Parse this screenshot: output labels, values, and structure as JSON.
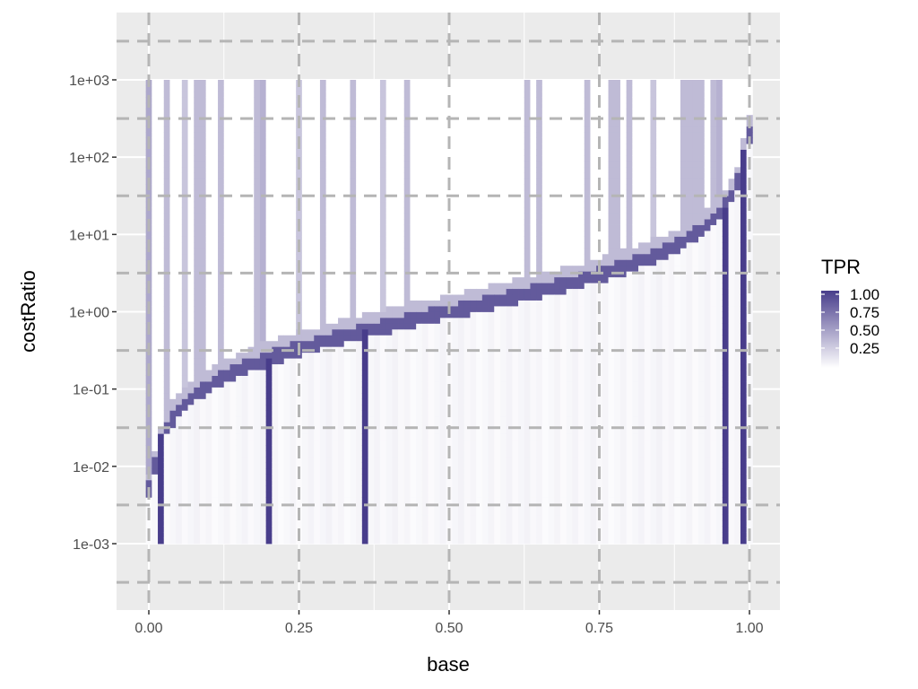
{
  "chart_data": {
    "type": "heatmap",
    "title": "",
    "xlabel": "base",
    "ylabel": "costRatio",
    "x_tick_labels": [
      "0.00",
      "0.25",
      "0.50",
      "0.75",
      "1.00"
    ],
    "x_ticks": [
      0,
      0.25,
      0.5,
      0.75,
      1
    ],
    "y_tick_labels": [
      "1e-03",
      "1e-02",
      "1e-01",
      "1e+00",
      "1e+01",
      "1e+02",
      "1e+03"
    ],
    "y_ticks_log10": [
      -3,
      -2,
      -1,
      0,
      1,
      2,
      3
    ],
    "x_range": [
      -0.05,
      1.05
    ],
    "y_range_log10": [
      -3.85,
      3.85
    ],
    "y_scale": "log10",
    "fill_variable": "TPR",
    "colors": {
      "low": "#ffffff",
      "high": "#483d8b",
      "panel": "#ebebeb",
      "dashed": "#b5b5b5"
    },
    "legend": {
      "title": "TPR",
      "labels": [
        "1.00",
        "0.75",
        "0.50",
        "0.25"
      ],
      "values": [
        1.0,
        0.75,
        0.5,
        0.25
      ],
      "placement": "right"
    },
    "threshold_curve": "costRatio = base / (1 - base)",
    "vertical_bands": [
      {
        "x": 0.0,
        "tpr": 0.45
      },
      {
        "x": 0.03,
        "tpr": 0.35
      },
      {
        "x": 0.06,
        "tpr": 0.3
      },
      {
        "x": 0.08,
        "tpr": 0.35
      },
      {
        "x": 0.09,
        "tpr": 0.35
      },
      {
        "x": 0.12,
        "tpr": 0.35
      },
      {
        "x": 0.18,
        "tpr": 0.35
      },
      {
        "x": 0.19,
        "tpr": 0.4
      },
      {
        "x": 0.25,
        "tpr": 0.3
      },
      {
        "x": 0.29,
        "tpr": 0.35
      },
      {
        "x": 0.34,
        "tpr": 0.35
      },
      {
        "x": 0.39,
        "tpr": 0.3
      },
      {
        "x": 0.43,
        "tpr": 0.35
      },
      {
        "x": 0.63,
        "tpr": 0.35
      },
      {
        "x": 0.65,
        "tpr": 0.35
      },
      {
        "x": 0.73,
        "tpr": 0.35
      },
      {
        "x": 0.77,
        "tpr": 0.35
      },
      {
        "x": 0.78,
        "tpr": 0.35
      },
      {
        "x": 0.8,
        "tpr": 0.35
      },
      {
        "x": 0.84,
        "tpr": 0.3
      },
      {
        "x": 0.89,
        "tpr": 0.35
      },
      {
        "x": 0.9,
        "tpr": 0.35
      },
      {
        "x": 0.91,
        "tpr": 0.35
      },
      {
        "x": 0.92,
        "tpr": 0.35
      },
      {
        "x": 0.94,
        "tpr": 0.35
      },
      {
        "x": 0.95,
        "tpr": 0.4
      }
    ],
    "full_columns": [
      {
        "x": 0.02,
        "costRatio_max": 0.025,
        "tpr": 1.0
      },
      {
        "x": 0.2,
        "costRatio_max": 0.25,
        "tpr": 1.0
      },
      {
        "x": 0.36,
        "costRatio_max": 0.56,
        "tpr": 1.0
      },
      {
        "x": 0.96,
        "costRatio_max": 24,
        "tpr": 1.0
      },
      {
        "x": 0.99,
        "costRatio_max": 130,
        "tpr": 1.0
      }
    ],
    "grid": true
  }
}
